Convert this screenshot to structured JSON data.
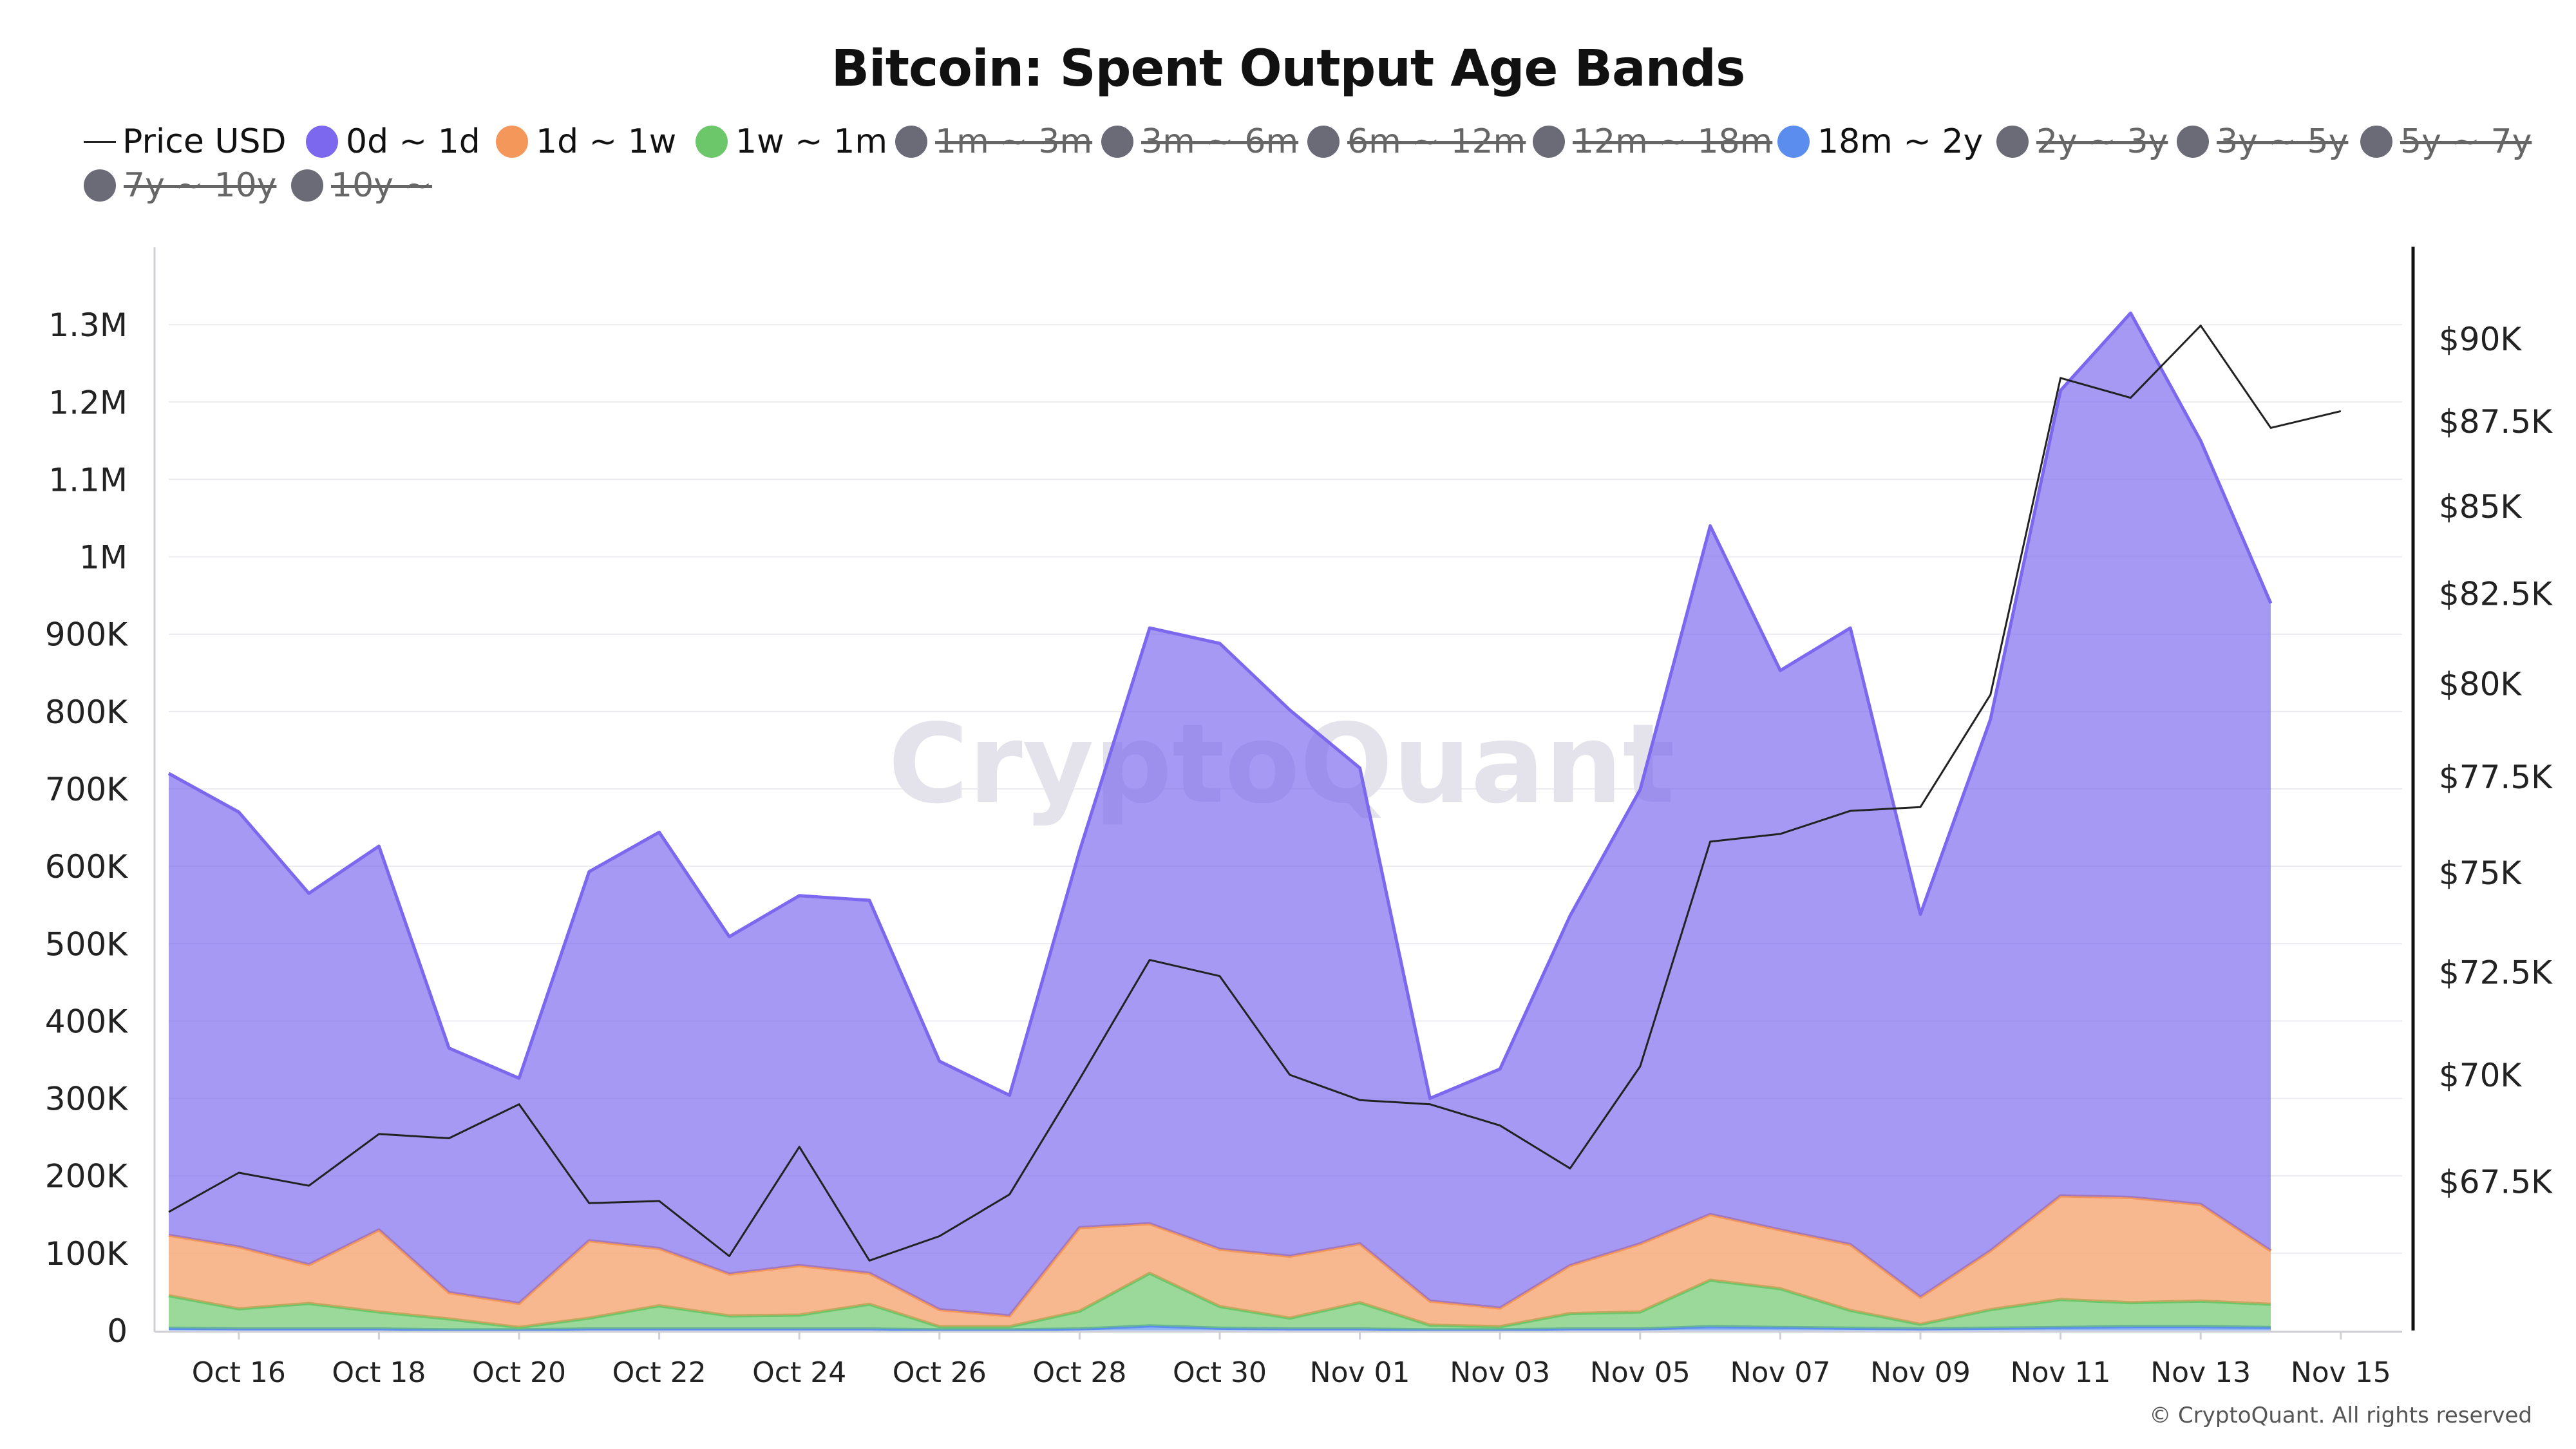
{
  "title": "Bitcoin: Spent Output Age Bands",
  "copyright": "© CryptoQuant. All rights reserved",
  "watermark": "CryptoQuant",
  "legend": [
    {
      "label": "Price USD",
      "kind": "line",
      "color": "#222222",
      "active": true
    },
    {
      "label": "0d ~ 1d",
      "kind": "dot",
      "color": "#7b68ee",
      "active": true
    },
    {
      "label": "1d ~ 1w",
      "kind": "dot",
      "color": "#f4975a",
      "active": true
    },
    {
      "label": "1w ~ 1m",
      "kind": "dot",
      "color": "#6cc76a",
      "active": true
    },
    {
      "label": "1m ~ 3m",
      "kind": "dot",
      "color": "#6b6b78",
      "active": false
    },
    {
      "label": "3m ~ 6m",
      "kind": "dot",
      "color": "#6b6b78",
      "active": false
    },
    {
      "label": "6m ~ 12m",
      "kind": "dot",
      "color": "#6b6b78",
      "active": false
    },
    {
      "label": "12m ~ 18m",
      "kind": "dot",
      "color": "#6b6b78",
      "active": false
    },
    {
      "label": "18m ~ 2y",
      "kind": "dot",
      "color": "#5b8def",
      "active": true
    },
    {
      "label": "2y ~ 3y",
      "kind": "dot",
      "color": "#6b6b78",
      "active": false
    },
    {
      "label": "3y ~ 5y",
      "kind": "dot",
      "color": "#6b6b78",
      "active": false
    },
    {
      "label": "5y ~ 7y",
      "kind": "dot",
      "color": "#6b6b78",
      "active": false
    },
    {
      "label": "7y ~ 10y",
      "kind": "dot",
      "color": "#6b6b78",
      "active": false
    },
    {
      "label": "10y ~",
      "kind": "dot",
      "color": "#6b6b78",
      "active": false
    }
  ],
  "chart_data": {
    "type": "area",
    "title": "Bitcoin: Spent Output Age Bands",
    "x": [
      "Oct 15",
      "Oct 16",
      "Oct 17",
      "Oct 18",
      "Oct 19",
      "Oct 20",
      "Oct 21",
      "Oct 22",
      "Oct 23",
      "Oct 24",
      "Oct 25",
      "Oct 26",
      "Oct 27",
      "Oct 28",
      "Oct 29",
      "Oct 30",
      "Oct 31",
      "Nov 01",
      "Nov 02",
      "Nov 03",
      "Nov 04",
      "Nov 05",
      "Nov 06",
      "Nov 07",
      "Nov 08",
      "Nov 09",
      "Nov 10",
      "Nov 11",
      "Nov 12",
      "Nov 13",
      "Nov 14",
      "Nov 15"
    ],
    "x_tick_labels": [
      "Oct 16",
      "Oct 18",
      "Oct 20",
      "Oct 22",
      "Oct 24",
      "Oct 26",
      "Oct 28",
      "Oct 30",
      "Nov 01",
      "Nov 03",
      "Nov 05",
      "Nov 07",
      "Nov 09",
      "Nov 11",
      "Nov 13",
      "Nov 15"
    ],
    "stacked": true,
    "series": [
      {
        "name": "18m ~ 2y",
        "color": "#5b8def",
        "values": [
          3000,
          2000,
          2000,
          2000,
          1000,
          1000,
          2000,
          2000,
          2000,
          2000,
          2000,
          1000,
          1000,
          2000,
          6000,
          3000,
          2000,
          2000,
          1000,
          1000,
          2000,
          2000,
          5000,
          4000,
          3000,
          2000,
          3000,
          4000,
          5000,
          5000,
          4000,
          null
        ]
      },
      {
        "name": "1w ~ 1m",
        "color": "#6cc76a",
        "values": [
          42000,
          26000,
          33000,
          22000,
          14000,
          3000,
          14000,
          30000,
          17000,
          18000,
          32000,
          4000,
          4000,
          23000,
          68000,
          28000,
          14000,
          34000,
          6000,
          4000,
          20000,
          22000,
          60000,
          50000,
          23000,
          6000,
          24000,
          36000,
          31000,
          33000,
          30000,
          null
        ]
      },
      {
        "name": "1d ~ 1w",
        "color": "#f4975a",
        "values": [
          78000,
          80000,
          50000,
          106000,
          34000,
          31000,
          100000,
          74000,
          54000,
          64000,
          40000,
          22000,
          14000,
          108000,
          64000,
          74000,
          80000,
          76000,
          31000,
          24000,
          62000,
          88000,
          85000,
          76000,
          85000,
          35000,
          76000,
          134000,
          136000,
          125000,
          69000,
          null
        ]
      },
      {
        "name": "0d ~ 1d",
        "color": "#7b68ee",
        "values": [
          597000,
          562000,
          480000,
          496000,
          316000,
          291000,
          477000,
          538000,
          436000,
          478000,
          482000,
          321000,
          285000,
          487000,
          770000,
          783000,
          706000,
          615000,
          262000,
          309000,
          452000,
          587000,
          890000,
          723000,
          797000,
          495000,
          687000,
          1041000,
          1143000,
          987000,
          837000,
          null
        ]
      }
    ],
    "price_series": {
      "name": "Price USD",
      "color": "#222222",
      "values": [
        66800,
        67700,
        67400,
        68600,
        68500,
        69300,
        67000,
        67050,
        65800,
        68300,
        65700,
        66250,
        67200,
        69900,
        72800,
        72400,
        70000,
        69400,
        69300,
        68800,
        67800,
        70200,
        75800,
        76000,
        76600,
        76700,
        79700,
        88800,
        88200,
        90400,
        87300,
        87800
      ]
    },
    "left_axis": {
      "min": 0,
      "max": 1400000,
      "ticks": [
        0,
        100000,
        200000,
        300000,
        400000,
        500000,
        600000,
        700000,
        800000,
        900000,
        1000000,
        1100000,
        1200000,
        1300000
      ],
      "tick_labels": [
        "0",
        "100K",
        "200K",
        "300K",
        "400K",
        "500K",
        "600K",
        "700K",
        "800K",
        "900K",
        "1M",
        "1.1M",
        "1.2M",
        "1.3M"
      ]
    },
    "right_axis": {
      "min": 64150,
      "max": 92870,
      "ticks": [
        67500,
        70000,
        72500,
        75000,
        77500,
        80000,
        82500,
        85000,
        87500,
        90000
      ],
      "tick_labels": [
        "$67.5K",
        "$70K",
        "$72.5K",
        "$75K",
        "$77.5K",
        "$80K",
        "$82.5K",
        "$85K",
        "$87.5K",
        "$90K"
      ],
      "scale": "log"
    },
    "grid": true
  }
}
